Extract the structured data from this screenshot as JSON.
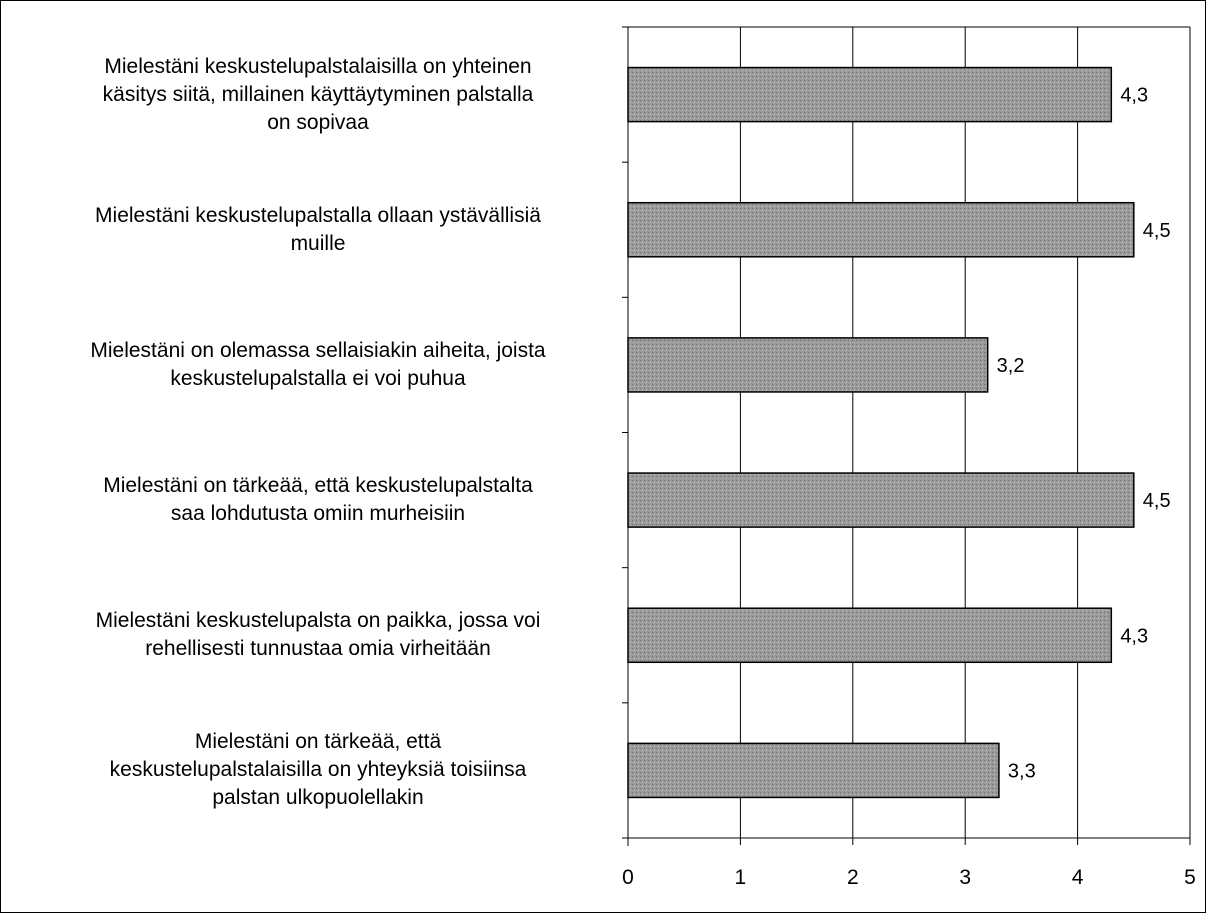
{
  "chart_data": {
    "type": "bar",
    "orientation": "horizontal",
    "categories": [
      "Mielestäni keskustelupalstalaisilla on yhteinen\nkäsitys siitä, millainen käyttäytyminen palstalla\non sopivaa",
      "Mielestäni keskustelupalstalla ollaan ystävällisiä\nmuille",
      "Mielestäni on olemassa sellaisiakin aiheita, joista\nkeskustelupalstalla ei voi puhua",
      "Mielestäni on tärkeää, että keskustelupalstalta\nsaa lohdutusta omiin murheisiin",
      "Mielestäni keskustelupalsta on paikka, jossa voi\nrehellisesti tunnustaa omia virheitään",
      "Mielestäni on tärkeää, että\nkeskustelupalstalaisilla on yhteyksiä toisiinsa\npalstan ulkopuolellakin"
    ],
    "values": [
      4.3,
      4.5,
      3.2,
      4.5,
      4.3,
      3.3
    ],
    "value_labels": [
      "4,3",
      "4,5",
      "3,2",
      "4,5",
      "4,3",
      "3,3"
    ],
    "xlim": [
      0,
      5
    ],
    "ticks": [
      "0",
      "1",
      "2",
      "3",
      "4",
      "5"
    ],
    "grid": true,
    "bar_color": "#9a9a9a",
    "title": "",
    "xlabel": "",
    "ylabel": ""
  }
}
